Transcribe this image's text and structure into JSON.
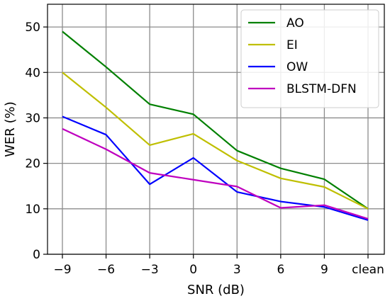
{
  "chart_data": {
    "type": "line",
    "title": "",
    "xlabel": "SNR (dB)",
    "ylabel": "WER (%)",
    "categories": [
      "−9",
      "−6",
      "−3",
      "0",
      "3",
      "6",
      "9",
      "clean"
    ],
    "ylim": [
      0,
      55
    ],
    "yticks": [
      "0",
      "10",
      "20",
      "30",
      "40",
      "50"
    ],
    "grid": true,
    "legend_position": "top-right",
    "series": [
      {
        "name": "AO",
        "color": "#008000",
        "values": [
          49.0,
          41.2,
          33.0,
          30.8,
          22.8,
          18.9,
          16.5,
          10.0
        ]
      },
      {
        "name": "EI",
        "color": "#bfbf00",
        "values": [
          40.0,
          32.3,
          24.0,
          26.5,
          20.6,
          16.7,
          14.8,
          10.0
        ]
      },
      {
        "name": "OW",
        "color": "#0000ff",
        "values": [
          30.3,
          26.3,
          15.4,
          21.2,
          13.7,
          11.6,
          10.4,
          7.5
        ]
      },
      {
        "name": "BLSTM-DFN",
        "color": "#bf00bf",
        "values": [
          27.6,
          23.1,
          17.9,
          16.4,
          14.9,
          10.2,
          10.8,
          7.8
        ]
      }
    ]
  }
}
